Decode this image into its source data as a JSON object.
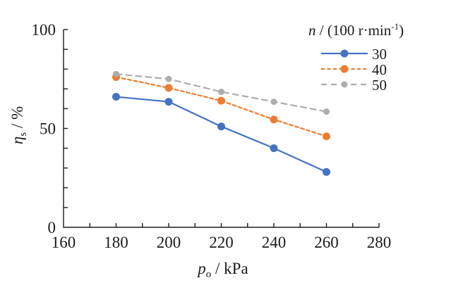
{
  "chart_data": {
    "type": "line",
    "title": "",
    "x": [
      180,
      200,
      220,
      240,
      260
    ],
    "series": [
      {
        "name": "30",
        "values": [
          66,
          63.5,
          51,
          40,
          28
        ],
        "color": "#4472C4",
        "line_style": "solid",
        "marker": "circle",
        "marker_radius": 5.5
      },
      {
        "name": "40",
        "values": [
          76,
          70.5,
          64,
          54.5,
          46
        ],
        "color": "#ED7D31",
        "line_style": "dashed-short",
        "marker": "circle",
        "marker_radius": 5.5
      },
      {
        "name": "50",
        "values": [
          77.5,
          75,
          68.5,
          63.5,
          58.5
        ],
        "color": "#ADADAD",
        "line_style": "dashed-long",
        "marker": "circle",
        "marker_radius": 4.5
      }
    ],
    "xlabel": {
      "text": "p_o / kPa",
      "symbol": "p",
      "subscript": "o",
      "unit": " / kPa"
    },
    "ylabel": {
      "text": "eta_s / %",
      "symbol": "η",
      "subscript": "s",
      "unit": " / %"
    },
    "legend": {
      "position": "top-right",
      "title": {
        "text": "n / (100 r·min^-1)",
        "symbol": "n",
        "mid": " / (100 r·min",
        "superscript": "-1",
        "end": ")"
      },
      "entries": [
        "30",
        "40",
        "50"
      ]
    },
    "xlim": [
      160,
      280
    ],
    "ylim": [
      0,
      100
    ],
    "x_tick_labels": [
      160,
      180,
      200,
      220,
      240,
      260,
      280
    ],
    "x_minor_tick_step": 10,
    "y_tick_labels": [
      0,
      50,
      100
    ],
    "y_minor_tick_step": 10,
    "grid": false,
    "tick_direction": "inside",
    "axis_color": "#1b1b1b",
    "background_color": "#ffffff"
  }
}
